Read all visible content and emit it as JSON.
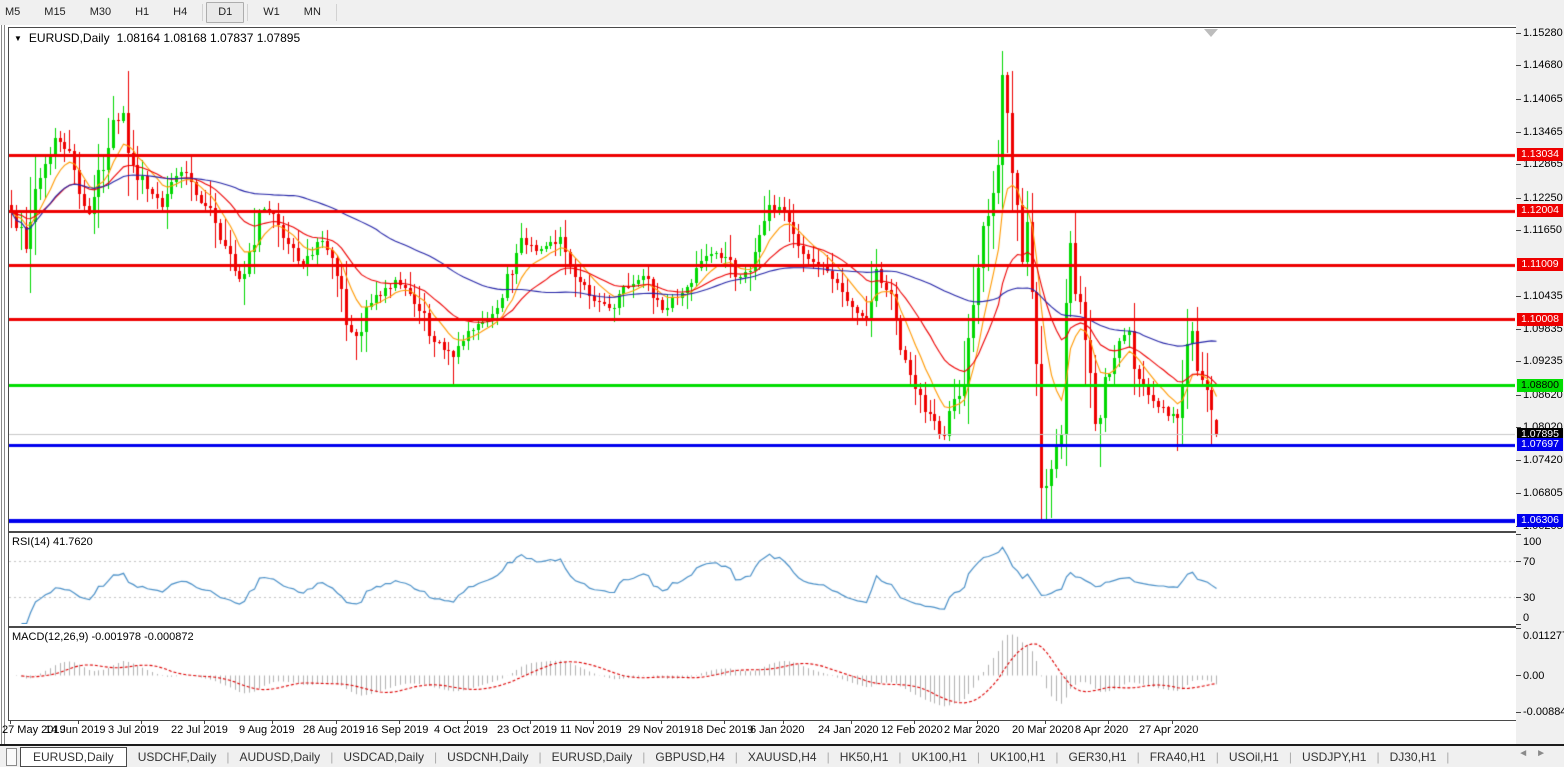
{
  "toolbar": {
    "timeframes": [
      "M5",
      "M15",
      "M30",
      "H1",
      "H4",
      "D1",
      "W1",
      "MN"
    ],
    "active": "D1"
  },
  "title": {
    "symbol": "EURUSD,Daily",
    "ohlc": "1.08164 1.08168 1.07837 1.07895"
  },
  "price_axis": {
    "ticks": [
      1.1528,
      1.1468,
      1.14065,
      1.13465,
      1.12865,
      1.1225,
      1.1165,
      1.10435,
      1.09835,
      1.09235,
      1.0862,
      1.0802,
      1.0742,
      1.06805,
      1.06205
    ]
  },
  "price_tags": [
    {
      "label": "1.13034",
      "price": 1.13034,
      "bg": "#ee0000",
      "fg": "#ffffff"
    },
    {
      "label": "1.12004",
      "price": 1.12004,
      "bg": "#ee0000",
      "fg": "#ffffff"
    },
    {
      "label": "1.11009",
      "price": 1.11009,
      "bg": "#ee0000",
      "fg": "#ffffff"
    },
    {
      "label": "1.10008",
      "price": 1.10008,
      "bg": "#ee0000",
      "fg": "#ffffff"
    },
    {
      "label": "1.08800",
      "price": 1.088,
      "bg": "#00dd00",
      "fg": "#000000"
    },
    {
      "label": "1.07895",
      "price": 1.07895,
      "bg": "#000000",
      "fg": "#ffffff"
    },
    {
      "label": "1.07697",
      "price": 1.07697,
      "bg": "#0000ee",
      "fg": "#ffffff"
    },
    {
      "label": "1.06306",
      "price": 1.06306,
      "bg": "#0000ee",
      "fg": "#ffffff"
    }
  ],
  "rsi_panel": {
    "label": "RSI(14) 41.7620",
    "axis": [
      {
        "label": "100",
        "v": 100
      },
      {
        "label": "70",
        "v": 70
      },
      {
        "label": "30",
        "v": 30
      },
      {
        "label": "0",
        "v": 0
      }
    ],
    "dashed_levels": [
      70,
      30
    ]
  },
  "macd_panel": {
    "label": "MACD(12,26,9) -0.001978 -0.000872",
    "axis": [
      {
        "label": "0.011277",
        "v": 0.011277
      },
      {
        "label": "0.00",
        "v": 0
      },
      {
        "label": "-0.008845",
        "v": -0.008845
      }
    ]
  },
  "tabs": {
    "active_index": 0,
    "items": [
      "EURUSD,Daily",
      "USDCHF,Daily",
      "AUDUSD,Daily",
      "USDCAD,Daily",
      "USDCNH,Daily",
      "EURUSD,Daily",
      "GBPUSD,H4",
      "XAUUSD,H4",
      "HK50,H1",
      "UK100,H1",
      "UK100,H1",
      "GER30,H1",
      "FRA40,H1",
      "USOil,H1",
      "USDJPY,H1",
      "DJ30,H1"
    ]
  },
  "chart_data": {
    "type": "candlestick",
    "symbol": "EURUSD",
    "timeframe": "Daily",
    "bars": 249,
    "visible_price_range": [
      1.0615,
      1.1537
    ],
    "last_bar": {
      "open": 1.08164,
      "high": 1.08168,
      "low": 1.07837,
      "close": 1.07895
    },
    "current_price": 1.07895,
    "date_ticks": [
      {
        "label": "27 May 2019",
        "bar": 0
      },
      {
        "label": "14 Jun 2019",
        "bar": 14
      },
      {
        "label": "3 Jul 2019",
        "bar": 27
      },
      {
        "label": "22 Jul 2019",
        "bar": 40
      },
      {
        "label": "9 Aug 2019",
        "bar": 54
      },
      {
        "label": "28 Aug 2019",
        "bar": 67
      },
      {
        "label": "16 Sep 2019",
        "bar": 80
      },
      {
        "label": "4 Oct 2019",
        "bar": 94
      },
      {
        "label": "23 Oct 2019",
        "bar": 107
      },
      {
        "label": "11 Nov 2019",
        "bar": 120
      },
      {
        "label": "29 Nov 2019",
        "bar": 134
      },
      {
        "label": "18 Dec 2019",
        "bar": 147
      },
      {
        "label": "6 Jan 2020",
        "bar": 159
      },
      {
        "label": "24 Jan 2020",
        "bar": 173
      },
      {
        "label": "12 Feb 2020",
        "bar": 186
      },
      {
        "label": "2 Mar 2020",
        "bar": 199
      },
      {
        "label": "20 Mar 2020",
        "bar": 213
      },
      {
        "label": "8 Apr 2020",
        "bar": 226
      },
      {
        "label": "27 Apr 2020",
        "bar": 239
      }
    ],
    "close_waypoints": [
      [
        0,
        1.1197
      ],
      [
        3,
        1.113
      ],
      [
        5,
        1.124
      ],
      [
        9,
        1.1334
      ],
      [
        12,
        1.131
      ],
      [
        16,
        1.1194
      ],
      [
        21,
        1.1367
      ],
      [
        23,
        1.138
      ],
      [
        25,
        1.1285
      ],
      [
        28,
        1.124
      ],
      [
        31,
        1.1208
      ],
      [
        33,
        1.1253
      ],
      [
        36,
        1.127
      ],
      [
        40,
        1.121
      ],
      [
        43,
        1.1146
      ],
      [
        47,
        1.1075
      ],
      [
        48,
        1.1085
      ],
      [
        51,
        1.12
      ],
      [
        54,
        1.1195
      ],
      [
        57,
        1.114
      ],
      [
        60,
        1.11
      ],
      [
        64,
        1.1145
      ],
      [
        67,
        1.108
      ],
      [
        69,
        1.099
      ],
      [
        71,
        1.097
      ],
      [
        74,
        1.103
      ],
      [
        79,
        1.1073
      ],
      [
        84,
        1.1017
      ],
      [
        87,
        1.096
      ],
      [
        91,
        1.0932
      ],
      [
        94,
        1.098
      ],
      [
        98,
        1.1003
      ],
      [
        101,
        1.104
      ],
      [
        105,
        1.115
      ],
      [
        109,
        1.113
      ],
      [
        113,
        1.1152
      ],
      [
        117,
        1.107
      ],
      [
        120,
        1.1035
      ],
      [
        123,
        1.1021
      ],
      [
        127,
        1.106
      ],
      [
        130,
        1.108
      ],
      [
        134,
        1.1018
      ],
      [
        139,
        1.106
      ],
      [
        144,
        1.1121
      ],
      [
        147,
        1.1115
      ],
      [
        149,
        1.1078
      ],
      [
        152,
        1.109
      ],
      [
        156,
        1.1212
      ],
      [
        159,
        1.1196
      ],
      [
        163,
        1.1121
      ],
      [
        168,
        1.109
      ],
      [
        173,
        1.1024
      ],
      [
        176,
        1.1
      ],
      [
        178,
        1.1093
      ],
      [
        181,
        1.1048
      ],
      [
        183,
        1.0945
      ],
      [
        186,
        1.0873
      ],
      [
        188,
        1.083
      ],
      [
        192,
        1.0786
      ],
      [
        194,
        1.0854
      ],
      [
        196,
        1.088
      ],
      [
        198,
        1.1027
      ],
      [
        200,
        1.1173
      ],
      [
        203,
        1.1284
      ],
      [
        204,
        1.145
      ],
      [
        205,
        1.138
      ],
      [
        206,
        1.1271
      ],
      [
        208,
        1.1106
      ],
      [
        209,
        1.118
      ],
      [
        211,
        1.0918
      ],
      [
        212,
        1.069
      ],
      [
        213,
        1.0695
      ],
      [
        214,
        1.0726
      ],
      [
        216,
        1.079
      ],
      [
        217,
        1.103
      ],
      [
        218,
        1.1141
      ],
      [
        219,
        1.1047
      ],
      [
        221,
        1.0962
      ],
      [
        223,
        1.0808
      ],
      [
        225,
        1.0894
      ],
      [
        227,
        1.093
      ],
      [
        230,
        1.098
      ],
      [
        231,
        1.091
      ],
      [
        234,
        1.0862
      ],
      [
        236,
        1.084
      ],
      [
        238,
        1.0823
      ],
      [
        240,
        1.082
      ],
      [
        242,
        1.0955
      ],
      [
        243,
        1.098
      ],
      [
        244,
        1.0905
      ],
      [
        246,
        1.087
      ],
      [
        247,
        1.0834
      ],
      [
        248,
        1.07895
      ]
    ],
    "extremes": {
      "21": {
        "high": 1.1412
      },
      "48": {
        "low": 1.1027
      },
      "71": {
        "low": 1.0926
      },
      "91": {
        "low": 1.0879
      },
      "105": {
        "high": 1.1179
      },
      "156": {
        "high": 1.1239
      },
      "192": {
        "low": 1.0778
      },
      "204": {
        "high": 1.1495
      },
      "214": {
        "low": 1.0636
      },
      "242": {
        "high": 1.1019
      },
      "247": {
        "low": 1.0766
      },
      "248": {
        "open": 1.08164,
        "high": 1.08168,
        "low": 1.07837,
        "close": 1.07895
      }
    },
    "levels": [
      {
        "price": 1.13034,
        "color": "#ee0000",
        "thickness": 3
      },
      {
        "price": 1.12004,
        "color": "#ee0000",
        "thickness": 3
      },
      {
        "price": 1.11009,
        "color": "#ee0000",
        "thickness": 3
      },
      {
        "price": 1.10008,
        "color": "#ee0000",
        "thickness": 3
      },
      {
        "price": 1.088,
        "color": "#00dd00",
        "thickness": 3
      },
      {
        "price": 1.07697,
        "color": "#0000ee",
        "thickness": 3
      },
      {
        "price": 1.06306,
        "color": "#0000ee",
        "thickness": 4
      }
    ],
    "indicators": {
      "moving_averages": [
        {
          "period": 8,
          "color": "#ff9900"
        },
        {
          "period": 21,
          "color": "#ee0000"
        },
        {
          "period": 55,
          "color": "#2525a8"
        }
      ],
      "rsi": {
        "period": 14,
        "current": 41.762,
        "range": [
          0,
          100
        ],
        "levels": [
          70,
          30
        ],
        "color": "#4a90c8"
      },
      "macd": {
        "fast": 12,
        "slow": 26,
        "signal": 9,
        "current_main": -0.001978,
        "current_signal": -0.000872,
        "axis_max": 0.011277,
        "axis_min": -0.008845,
        "hist_color": "#b2b2b2",
        "signal_color": "#dd0000"
      }
    },
    "colors": {
      "up": "#00d800",
      "down": "#ee0000",
      "current_line": "#c8c8c8",
      "background": "#ffffff"
    }
  }
}
